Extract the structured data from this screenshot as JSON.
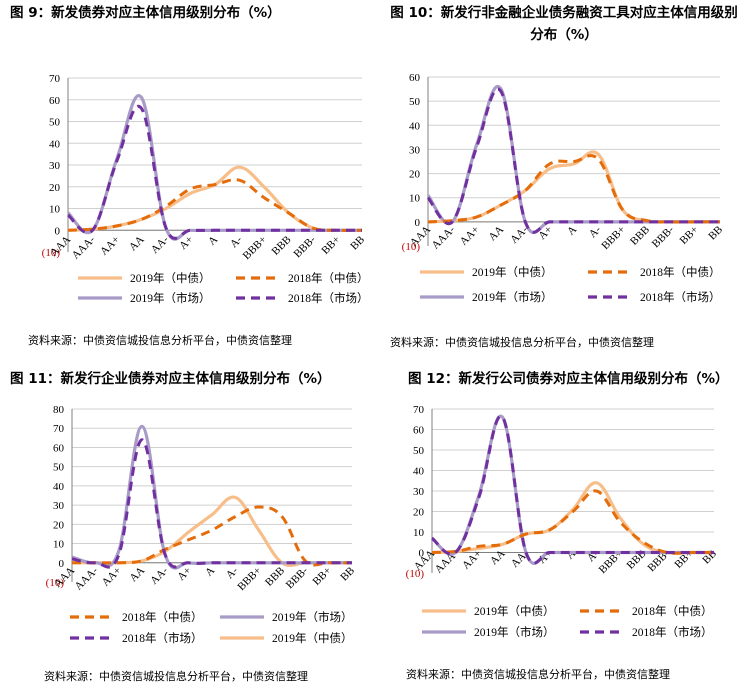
{
  "source_note": "资料来源：中债资信城投信息分析平台，中债资信整理",
  "chart_data": [
    {
      "type": "line",
      "title": "图 9：新发债券对应主体信用级别分布（%）",
      "categories": [
        "AAA",
        "AAA-",
        "AA+",
        "AA",
        "AA-",
        "A+",
        "A",
        "A-",
        "BBB+",
        "BBB",
        "BBB-",
        "BB+",
        "BB"
      ],
      "y_ticks": [
        "(10)",
        "0",
        "10",
        "20",
        "30",
        "40",
        "50",
        "60",
        "70"
      ],
      "ylim": [
        -10,
        70
      ],
      "grid": true,
      "legend_placement": "bottom",
      "legend_order": [
        0,
        1,
        2,
        3
      ],
      "series": [
        {
          "name": "2019年（中债）",
          "color": "#F7BE8A",
          "dashed": false,
          "values": [
            0,
            0.5,
            2,
            5,
            10,
            17,
            21,
            29,
            20,
            8,
            1,
            0,
            0
          ]
        },
        {
          "name": "2018年（中债）",
          "color": "#E46C0A",
          "dashed": true,
          "values": [
            0,
            0.5,
            2,
            5,
            11,
            19,
            21,
            23,
            15,
            8,
            1,
            0,
            0
          ]
        },
        {
          "name": "2019年（市场）",
          "color": "#A89BC8",
          "dashed": false,
          "values": [
            8,
            0,
            33,
            61,
            1,
            0,
            0,
            0,
            0,
            0,
            0,
            0,
            0
          ]
        },
        {
          "name": "2018年（市场）",
          "color": "#7030A0",
          "dashed": true,
          "values": [
            7,
            0,
            32,
            56,
            1,
            0,
            0,
            0,
            0,
            0,
            0,
            0,
            0
          ]
        }
      ]
    },
    {
      "type": "line",
      "title": "图 10：新发行非金融企业债务融资工具对应主体信用级别分布（%）",
      "categories": [
        "AAA",
        "AAA-",
        "AA+",
        "AA",
        "AA-",
        "A+",
        "A",
        "A-",
        "BBB+",
        "BBB",
        "BBB-",
        "BB+",
        "BB"
      ],
      "y_ticks": [
        "(10)",
        "0",
        "10",
        "20",
        "30",
        "40",
        "50",
        "60"
      ],
      "ylim": [
        -10,
        60
      ],
      "grid": true,
      "legend_placement": "bottom",
      "legend_order": [
        0,
        1,
        2,
        3
      ],
      "series": [
        {
          "name": "2019年（中债）",
          "color": "#F7BE8A",
          "dashed": false,
          "values": [
            0,
            0.5,
            2,
            7,
            13,
            22,
            24,
            28,
            5,
            0.5,
            0,
            0,
            0
          ]
        },
        {
          "name": "2018年（中债）",
          "color": "#E46C0A",
          "dashed": true,
          "values": [
            0,
            0.5,
            2,
            7,
            13,
            24,
            25,
            26,
            5,
            0.5,
            0,
            0,
            0
          ]
        },
        {
          "name": "2019年（市场）",
          "color": "#A89BC8",
          "dashed": false,
          "values": [
            11,
            0,
            32,
            55,
            0,
            0,
            0,
            0,
            0,
            0,
            0,
            0,
            0
          ]
        },
        {
          "name": "2018年（市场）",
          "color": "#7030A0",
          "dashed": true,
          "values": [
            10,
            0,
            31,
            54,
            0,
            0,
            0,
            0,
            0,
            0,
            0,
            0,
            0
          ]
        }
      ]
    },
    {
      "type": "line",
      "title": "图 11：新发行企业债券对应主体信用级别分布（%）",
      "categories": [
        "AAA",
        "AAA-",
        "AA+",
        "AA",
        "AA-",
        "A+",
        "A",
        "A-",
        "BBB+",
        "BBB",
        "BBB-",
        "BB+",
        "BB"
      ],
      "y_ticks": [
        "(10)",
        "0",
        "10",
        "20",
        "30",
        "40",
        "50",
        "60",
        "70",
        "80"
      ],
      "ylim": [
        -10,
        80
      ],
      "grid": true,
      "legend_placement": "bottom",
      "legend_order": [
        1,
        2,
        3,
        0
      ],
      "series": [
        {
          "name": "2019年（中债）",
          "color": "#F7BE8A",
          "dashed": false,
          "values": [
            0,
            0,
            0,
            1,
            6,
            16,
            25,
            34,
            17,
            0,
            0,
            0,
            0
          ]
        },
        {
          "name": "2018年（中债）",
          "color": "#E46C0A",
          "dashed": true,
          "values": [
            0,
            0,
            0,
            1,
            7,
            12,
            17,
            24,
            29,
            24,
            1,
            0,
            0
          ]
        },
        {
          "name": "2019年（市场）",
          "color": "#A89BC8",
          "dashed": false,
          "values": [
            3,
            0,
            6,
            71,
            4,
            0,
            0,
            0,
            0,
            0,
            0,
            0,
            0
          ]
        },
        {
          "name": "2018年（市场）",
          "color": "#7030A0",
          "dashed": true,
          "values": [
            2,
            0,
            4,
            64,
            4,
            0,
            0,
            0,
            0,
            0,
            0,
            0,
            0
          ]
        }
      ]
    },
    {
      "type": "line",
      "title": "图 12：新发行公司债券对应主体信用级别分布（%）",
      "categories": [
        "AAA",
        "AAA-",
        "AA+",
        "AA",
        "AA-",
        "A+",
        "A",
        "A-",
        "BBB+",
        "BBB",
        "BBB-",
        "BB+",
        "BB"
      ],
      "y_ticks": [
        "(10)",
        "0",
        "10",
        "20",
        "30",
        "40",
        "50",
        "60",
        "70"
      ],
      "ylim": [
        -10,
        70
      ],
      "grid": true,
      "legend_placement": "bottom",
      "legend_order": [
        0,
        1,
        2,
        3
      ],
      "series": [
        {
          "name": "2019年（中债）",
          "color": "#F7BE8A",
          "dashed": false,
          "values": [
            0,
            0.5,
            2,
            4,
            9,
            11,
            21,
            34,
            17,
            4,
            0,
            0,
            0
          ]
        },
        {
          "name": "2018年（中债）",
          "color": "#E46C0A",
          "dashed": true,
          "values": [
            0,
            0.5,
            3,
            4,
            9,
            11,
            20,
            30,
            15,
            5,
            0,
            0,
            0
          ]
        },
        {
          "name": "2019年（市场）",
          "color": "#A89BC8",
          "dashed": false,
          "values": [
            7,
            0,
            28,
            66,
            0,
            0,
            0,
            0,
            0,
            0,
            0,
            0,
            0
          ]
        },
        {
          "name": "2018年（市场）",
          "color": "#7030A0",
          "dashed": true,
          "values": [
            7,
            0,
            27,
            66,
            0,
            0,
            0,
            0,
            0,
            0,
            0,
            0,
            0
          ]
        }
      ]
    }
  ]
}
